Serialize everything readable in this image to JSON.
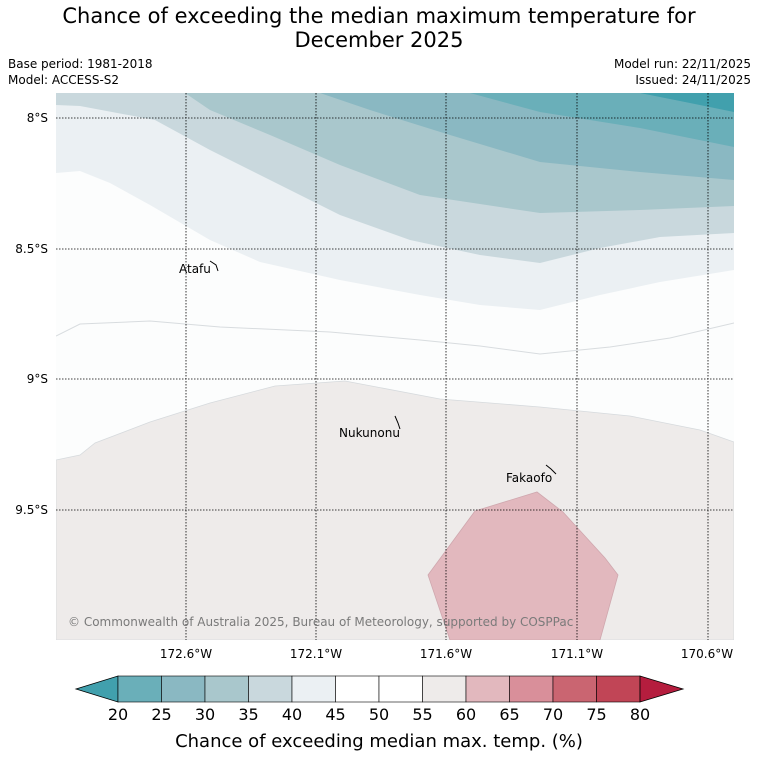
{
  "title": {
    "line1": "Chance of exceeding the median maximum temperature for",
    "line2": "December 2025"
  },
  "meta": {
    "base_period": "Base period: 1981-2018",
    "model": "Model: ACCESS-S2",
    "model_run": "Model run: 22/11/2025",
    "issued": "Issued: 24/11/2025"
  },
  "map": {
    "lat_labels": [
      "8°S",
      "8.5°S",
      "9°S",
      "9.5°S"
    ],
    "lon_labels": [
      "172.6°W",
      "172.1°W",
      "171.6°W",
      "171.1°W",
      "170.6°W"
    ],
    "places": [
      "Atafu",
      "Nukunonu",
      "Fakaofo"
    ],
    "copyright": "© Commonwealth of Australia 2025, Bureau of Meteorology, supported by COSPPac"
  },
  "colorbar": {
    "ticks": [
      "20",
      "25",
      "30",
      "35",
      "40",
      "45",
      "50",
      "55",
      "60",
      "65",
      "70",
      "75",
      "80"
    ],
    "colors": [
      "#41a0ad",
      "#6aafb9",
      "#8ab8c2",
      "#a9c7cc",
      "#c9d8dd",
      "#ebf0f3",
      "#ffffff",
      "#ffffff",
      "#eeebea",
      "#e2b8be",
      "#d98f9a",
      "#ca6571",
      "#c14556",
      "#b51d3e"
    ],
    "label": "Chance of exceeding median max. temp. (%)"
  }
}
